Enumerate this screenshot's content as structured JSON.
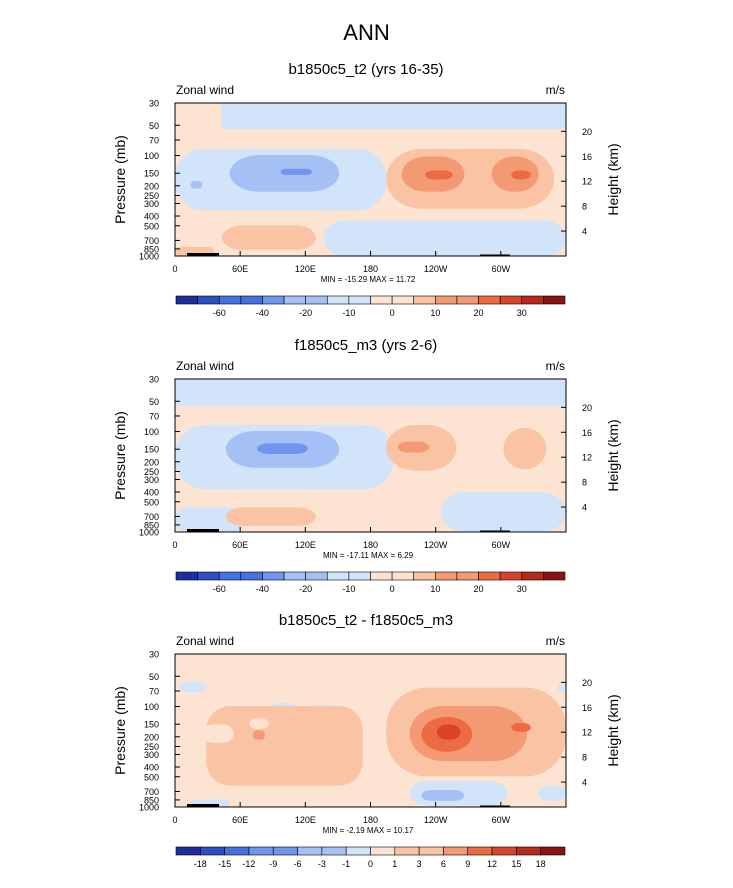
{
  "figure_title": "ANN",
  "palette": {
    "n6": "#1f2e9e",
    "n5": "#2d4fc4",
    "n4": "#4470e0",
    "n3": "#6f95ee",
    "n2": "#a5c0f4",
    "n1": "#d2e4f9",
    "p1": "#fde4d2",
    "p2": "#f9c3a4",
    "p3": "#f39a74",
    "p4": "#ec6b43",
    "p5": "#d9452a",
    "p6": "#b82a1d",
    "p7": "#8a1411"
  },
  "axis": {
    "pressure_label": "Pressure (mb)",
    "height_label": "Height (km)",
    "pressure_ticks": [
      "30",
      "50",
      "70",
      "100",
      "150",
      "200",
      "250",
      "300",
      "400",
      "500",
      "700",
      "850",
      "1000"
    ],
    "height_ticks": [
      "20",
      "16",
      "12",
      "8",
      "4"
    ],
    "lon_ticks": [
      "0",
      "60E",
      "120E",
      "180",
      "120W",
      "60W"
    ]
  },
  "chart_data": [
    {
      "type": "heatmap",
      "title": "b1850c5_t2 (yrs 16-35)",
      "left_label": "Zonal wind",
      "right_label": "m/s",
      "min_max_text": "MIN = -15.29  MAX =  11.72",
      "min": -15.29,
      "max": 11.72,
      "colorbar_levels": [
        "-60",
        "-40",
        "-20",
        "-10",
        "0",
        "10",
        "20",
        "30"
      ]
    },
    {
      "type": "heatmap",
      "title": "f1850c5_m3 (yrs 2-6)",
      "left_label": "Zonal wind",
      "right_label": "m/s",
      "min_max_text": "MIN = -17.11  MAX =  6.29",
      "min": -17.11,
      "max": 6.29,
      "colorbar_levels": [
        "-60",
        "-40",
        "-20",
        "-10",
        "0",
        "10",
        "20",
        "30"
      ]
    },
    {
      "type": "heatmap",
      "title": "b1850c5_t2 - f1850c5_m3",
      "left_label": "Zonal wind",
      "right_label": "m/s",
      "min_max_text": "MIN = -2.19  MAX = 10.17",
      "min": -2.19,
      "max": 10.17,
      "colorbar_levels": [
        "-18",
        "-15",
        "-12",
        "-9",
        "-6",
        "-3",
        "-1",
        "0",
        "1",
        "3",
        "6",
        "9",
        "12",
        "15",
        "18"
      ]
    }
  ]
}
